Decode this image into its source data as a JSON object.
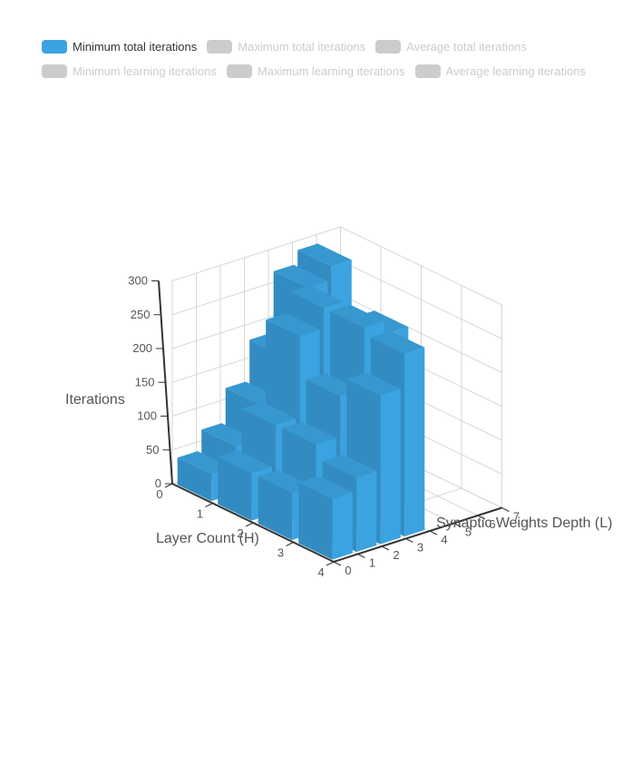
{
  "legend": {
    "items": [
      {
        "label": "Minimum total iterations",
        "active": true,
        "color": "#3ba3e0"
      },
      {
        "label": "Maximum total iterations",
        "active": false,
        "color": "#cccccc"
      },
      {
        "label": "Average total iterations",
        "active": false,
        "color": "#cccccc"
      },
      {
        "label": "Minimum learning iterations",
        "active": false,
        "color": "#cccccc"
      },
      {
        "label": "Maximum learning iterations",
        "active": false,
        "color": "#cccccc"
      },
      {
        "label": "Average learning iterations",
        "active": false,
        "color": "#cccccc"
      }
    ],
    "active_text_color": "#333333",
    "inactive_text_color": "#cccccc"
  },
  "chart_data": {
    "type": "bar",
    "subtype": "3d-bar",
    "series": [
      {
        "name": "Minimum total iterations",
        "color": "#3ba3e0"
      }
    ],
    "xlabel": "Layer Count (H)",
    "ylabel": "Iterations",
    "zlabel": "Synaptic Weights Depth (L)",
    "x_ticks": [
      "0",
      "1",
      "2",
      "3",
      "4"
    ],
    "y_ticks": [
      "0",
      "50",
      "100",
      "150",
      "200",
      "250",
      "300"
    ],
    "z_ticks": [
      "0",
      "1",
      "2",
      "3",
      "4",
      "5",
      "6",
      "7"
    ],
    "xlim": [
      0,
      4
    ],
    "ylim": [
      0,
      300
    ],
    "zlim": [
      0,
      7
    ],
    "grid": true,
    "bars": [
      {
        "layers": 0,
        "depth": 0,
        "value": 40
      },
      {
        "layers": 0,
        "depth": 1,
        "value": 70
      },
      {
        "layers": 0,
        "depth": 2,
        "value": 120
      },
      {
        "layers": 0,
        "depth": 3,
        "value": 180
      },
      {
        "layers": 0,
        "depth": 4,
        "value": 270
      },
      {
        "layers": 0,
        "depth": 5,
        "value": 290
      },
      {
        "layers": 1,
        "depth": 0,
        "value": 70
      },
      {
        "layers": 1,
        "depth": 1,
        "value": 130
      },
      {
        "layers": 1,
        "depth": 2,
        "value": 250
      },
      {
        "layers": 1,
        "depth": 3,
        "value": 280
      },
      {
        "layers": 2,
        "depth": 0,
        "value": 70
      },
      {
        "layers": 2,
        "depth": 1,
        "value": 130
      },
      {
        "layers": 2,
        "depth": 2,
        "value": 190
      },
      {
        "layers": 2,
        "depth": 3,
        "value": 280
      },
      {
        "layers": 2,
        "depth": 4,
        "value": 260
      },
      {
        "layers": 3,
        "depth": 0,
        "value": 90
      },
      {
        "layers": 3,
        "depth": 1,
        "value": 110
      },
      {
        "layers": 3,
        "depth": 2,
        "value": 220
      },
      {
        "layers": 3,
        "depth": 3,
        "value": 270
      }
    ]
  }
}
